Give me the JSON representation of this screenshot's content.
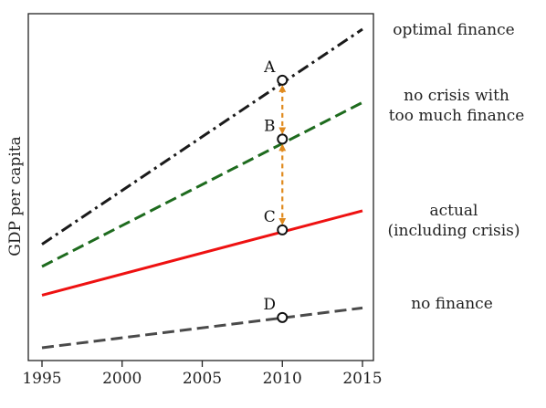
{
  "chart_data": {
    "type": "line",
    "title": "",
    "xlabel": "",
    "ylabel": "GDP per capita",
    "x_ticks": [
      "1995",
      "2000",
      "2005",
      "2010",
      "2015"
    ],
    "x_range": [
      1995,
      2015
    ],
    "y_range": [
      0,
      100
    ],
    "grid": false,
    "series": [
      {
        "key": "optimal",
        "name": "optimal finance",
        "label_lines": [
          "optimal finance"
        ],
        "color": "#1a1a1a",
        "style": "dashdot",
        "x": [
          1995,
          2015
        ],
        "y": [
          32.5,
          100
        ]
      },
      {
        "key": "nocrisis",
        "name": "no crisis with too much finance",
        "label_lines": [
          "no crisis with",
          "too much finance"
        ],
        "color": "#1e6b1e",
        "style": "dashed",
        "x": [
          1995,
          2015
        ],
        "y": [
          25.5,
          77
        ]
      },
      {
        "key": "actual",
        "name": "actual (including crisis)",
        "label_lines": [
          "actual",
          "(including crisis)"
        ],
        "color": "#ee1111",
        "style": "solid",
        "x": [
          1995,
          2015
        ],
        "y": [
          16.5,
          43
        ]
      },
      {
        "key": "nofinance",
        "name": "no finance",
        "label_lines": [
          "no finance"
        ],
        "color": "#4a4a4a",
        "style": "dashed",
        "x": [
          1995,
          2015
        ],
        "y": [
          0,
          12.5
        ]
      }
    ],
    "points": [
      {
        "label": "A",
        "x": 2010,
        "y": 84
      },
      {
        "label": "B",
        "x": 2010,
        "y": 65.5
      },
      {
        "label": "C",
        "x": 2010,
        "y": 37
      },
      {
        "label": "D",
        "x": 2010,
        "y": 9.5
      }
    ],
    "arrows": [
      {
        "x": 2010,
        "from": 84,
        "to": 65.5,
        "color": "#e08a1e"
      },
      {
        "x": 2010,
        "from": 65.5,
        "to": 37,
        "color": "#e08a1e"
      }
    ]
  }
}
